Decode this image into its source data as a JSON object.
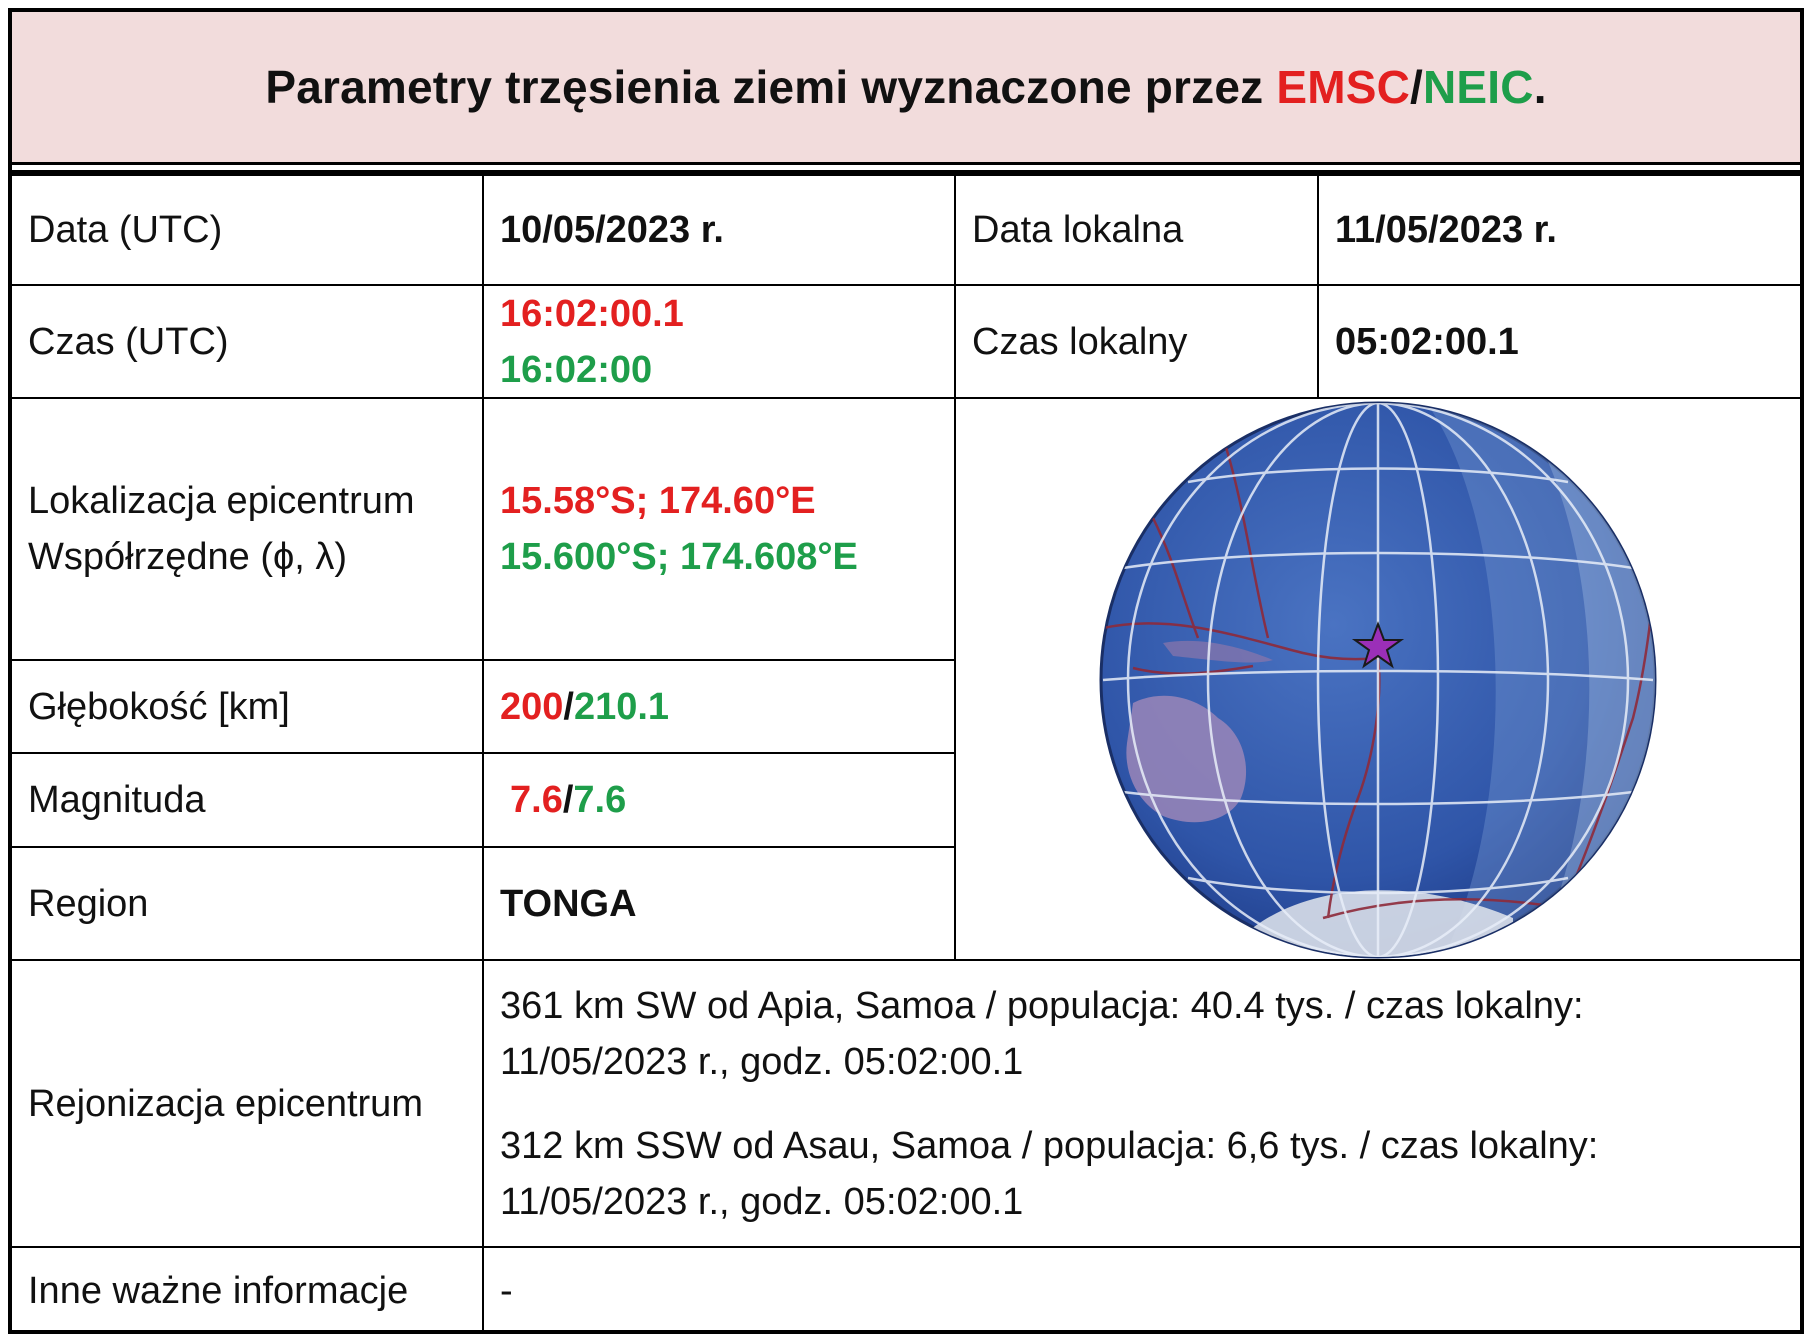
{
  "header": {
    "title_prefix": "Parametry trzęsienia ziemi wyznaczone przez ",
    "agency_emsc": "EMSC",
    "separator": "/",
    "agency_neic": "NEIC",
    "title_suffix": "."
  },
  "colors": {
    "emsc": "#e32020",
    "neic": "#1e9e4a",
    "header_bg": "#f2dcdc"
  },
  "rows": {
    "date": {
      "label": "Data (UTC)",
      "value": "10/05/2023 r.",
      "local_label": "Data lokalna",
      "local_value": "11/05/2023 r."
    },
    "time": {
      "label": "Czas (UTC)",
      "value_emsc": "16:02:00.1",
      "value_neic": "16:02:00",
      "local_label": "Czas lokalny",
      "local_value": "05:02:00.1"
    },
    "location": {
      "label_line1": "Lokalizacja epicentrum",
      "label_line2": "Współrzędne (ϕ, λ)",
      "value_emsc": "15.58°S; 174.60°E",
      "value_neic": "15.600°S; 174.608°E"
    },
    "depth": {
      "label": "Głębokość [km]",
      "value_emsc": "200",
      "separator": "/",
      "value_neic": "210.1"
    },
    "magnitude": {
      "label": "Magnituda",
      "value_emsc": "7.6",
      "separator": "/",
      "value_neic": "7.6"
    },
    "region": {
      "label": "Region",
      "value": "TONGA"
    },
    "regionalization": {
      "label": "Rejonizacja epicentrum",
      "para1_line1": "361 km SW od Apia, Samoa / populacja: 40.4 tys. / czas lokalny:",
      "para1_line2": "11/05/2023 r., godz. 05:02:00.1",
      "para2_line1": "312 km SSW od Asau, Samoa / populacja: 6,6 tys. / czas lokalny:",
      "para2_line2": "11/05/2023 r., godz. 05:02:00.1"
    },
    "other": {
      "label": "Inne ważne informacje",
      "value": "-"
    }
  },
  "globe": {
    "marker_icon": "star-icon",
    "marker_color": "#9b2fb8"
  }
}
